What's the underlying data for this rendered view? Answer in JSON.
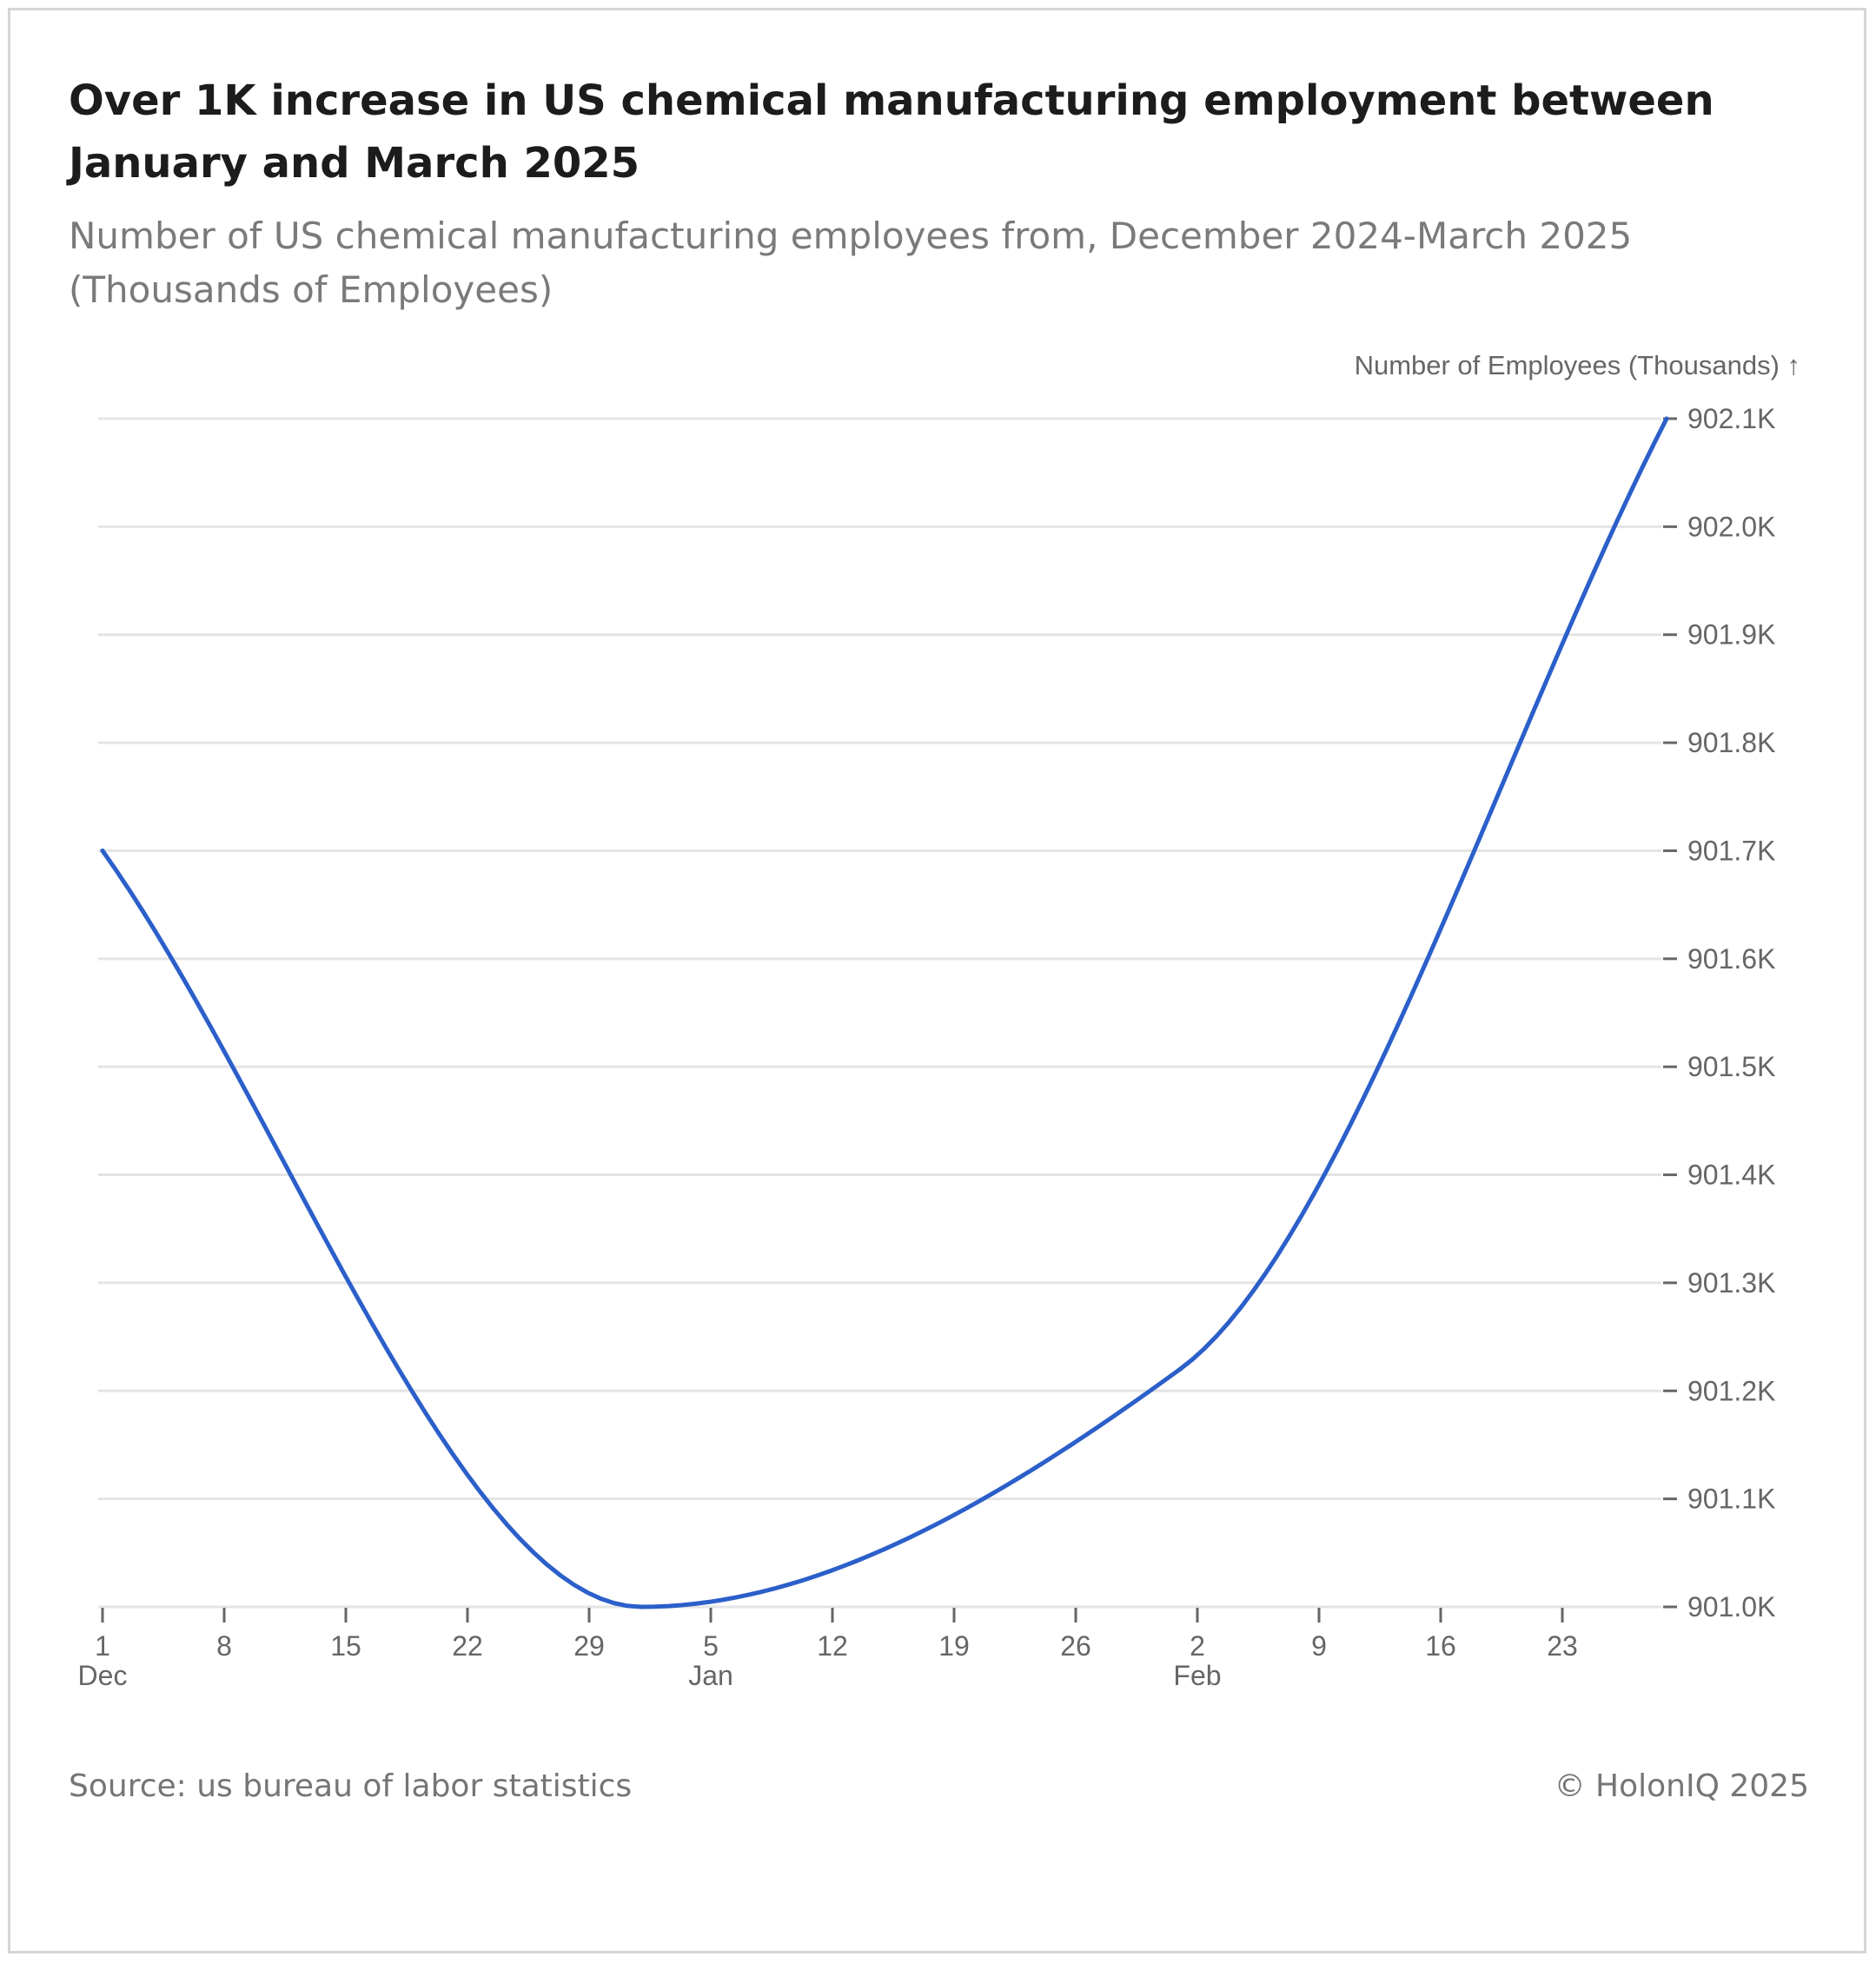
{
  "header": {
    "title": "Over 1K increase in US chemical manufacturing employment between January and March 2025",
    "subtitle": "Number of US chemical manufacturing employees from, December 2024-March 2025 (Thousands of Employees)"
  },
  "footer": {
    "source": "Source: us bureau of labor statistics",
    "copyright": "© HolonIQ 2025"
  },
  "colors": {
    "line": "#2b5fc9",
    "grid": "#e4e4e4",
    "axis": "#666666"
  },
  "chart_data": {
    "type": "line",
    "title": "Over 1K increase in US chemical manufacturing employment between January and March 2025",
    "subtitle": "Number of US chemical manufacturing employees from, December 2024-March 2025 (Thousands of Employees)",
    "ylabel": "Number of Employees (Thousands) ↑",
    "xlabel": "",
    "ylim": [
      901.0,
      902.1
    ],
    "y_ticks": [
      901.0,
      901.1,
      901.2,
      901.3,
      901.4,
      901.5,
      901.6,
      901.7,
      901.8,
      901.9,
      902.0,
      902.1
    ],
    "y_tick_labels": [
      "901.0K",
      "901.1K",
      "901.2K",
      "901.3K",
      "901.4K",
      "901.5K",
      "901.6K",
      "901.7K",
      "901.8K",
      "901.9K",
      "902.0K",
      "902.1K"
    ],
    "y_axis_side": "right",
    "grid": true,
    "x_ticks": [
      {
        "label": "1",
        "sublabel": "Dec"
      },
      {
        "label": "8",
        "sublabel": ""
      },
      {
        "label": "15",
        "sublabel": ""
      },
      {
        "label": "22",
        "sublabel": ""
      },
      {
        "label": "29",
        "sublabel": ""
      },
      {
        "label": "5",
        "sublabel": "Jan"
      },
      {
        "label": "12",
        "sublabel": ""
      },
      {
        "label": "19",
        "sublabel": ""
      },
      {
        "label": "26",
        "sublabel": ""
      },
      {
        "label": "2",
        "sublabel": "Feb"
      },
      {
        "label": "9",
        "sublabel": ""
      },
      {
        "label": "16",
        "sublabel": ""
      },
      {
        "label": "23",
        "sublabel": ""
      }
    ],
    "series": [
      {
        "name": "Number of Employees (Thousands)",
        "x": [
          "2024-12-01",
          "2025-01-01",
          "2025-02-01",
          "2025-03-01"
        ],
        "x_day_offset": [
          0,
          31,
          62,
          90
        ],
        "values": [
          901.7,
          901.0,
          901.22,
          902.1
        ]
      }
    ]
  }
}
